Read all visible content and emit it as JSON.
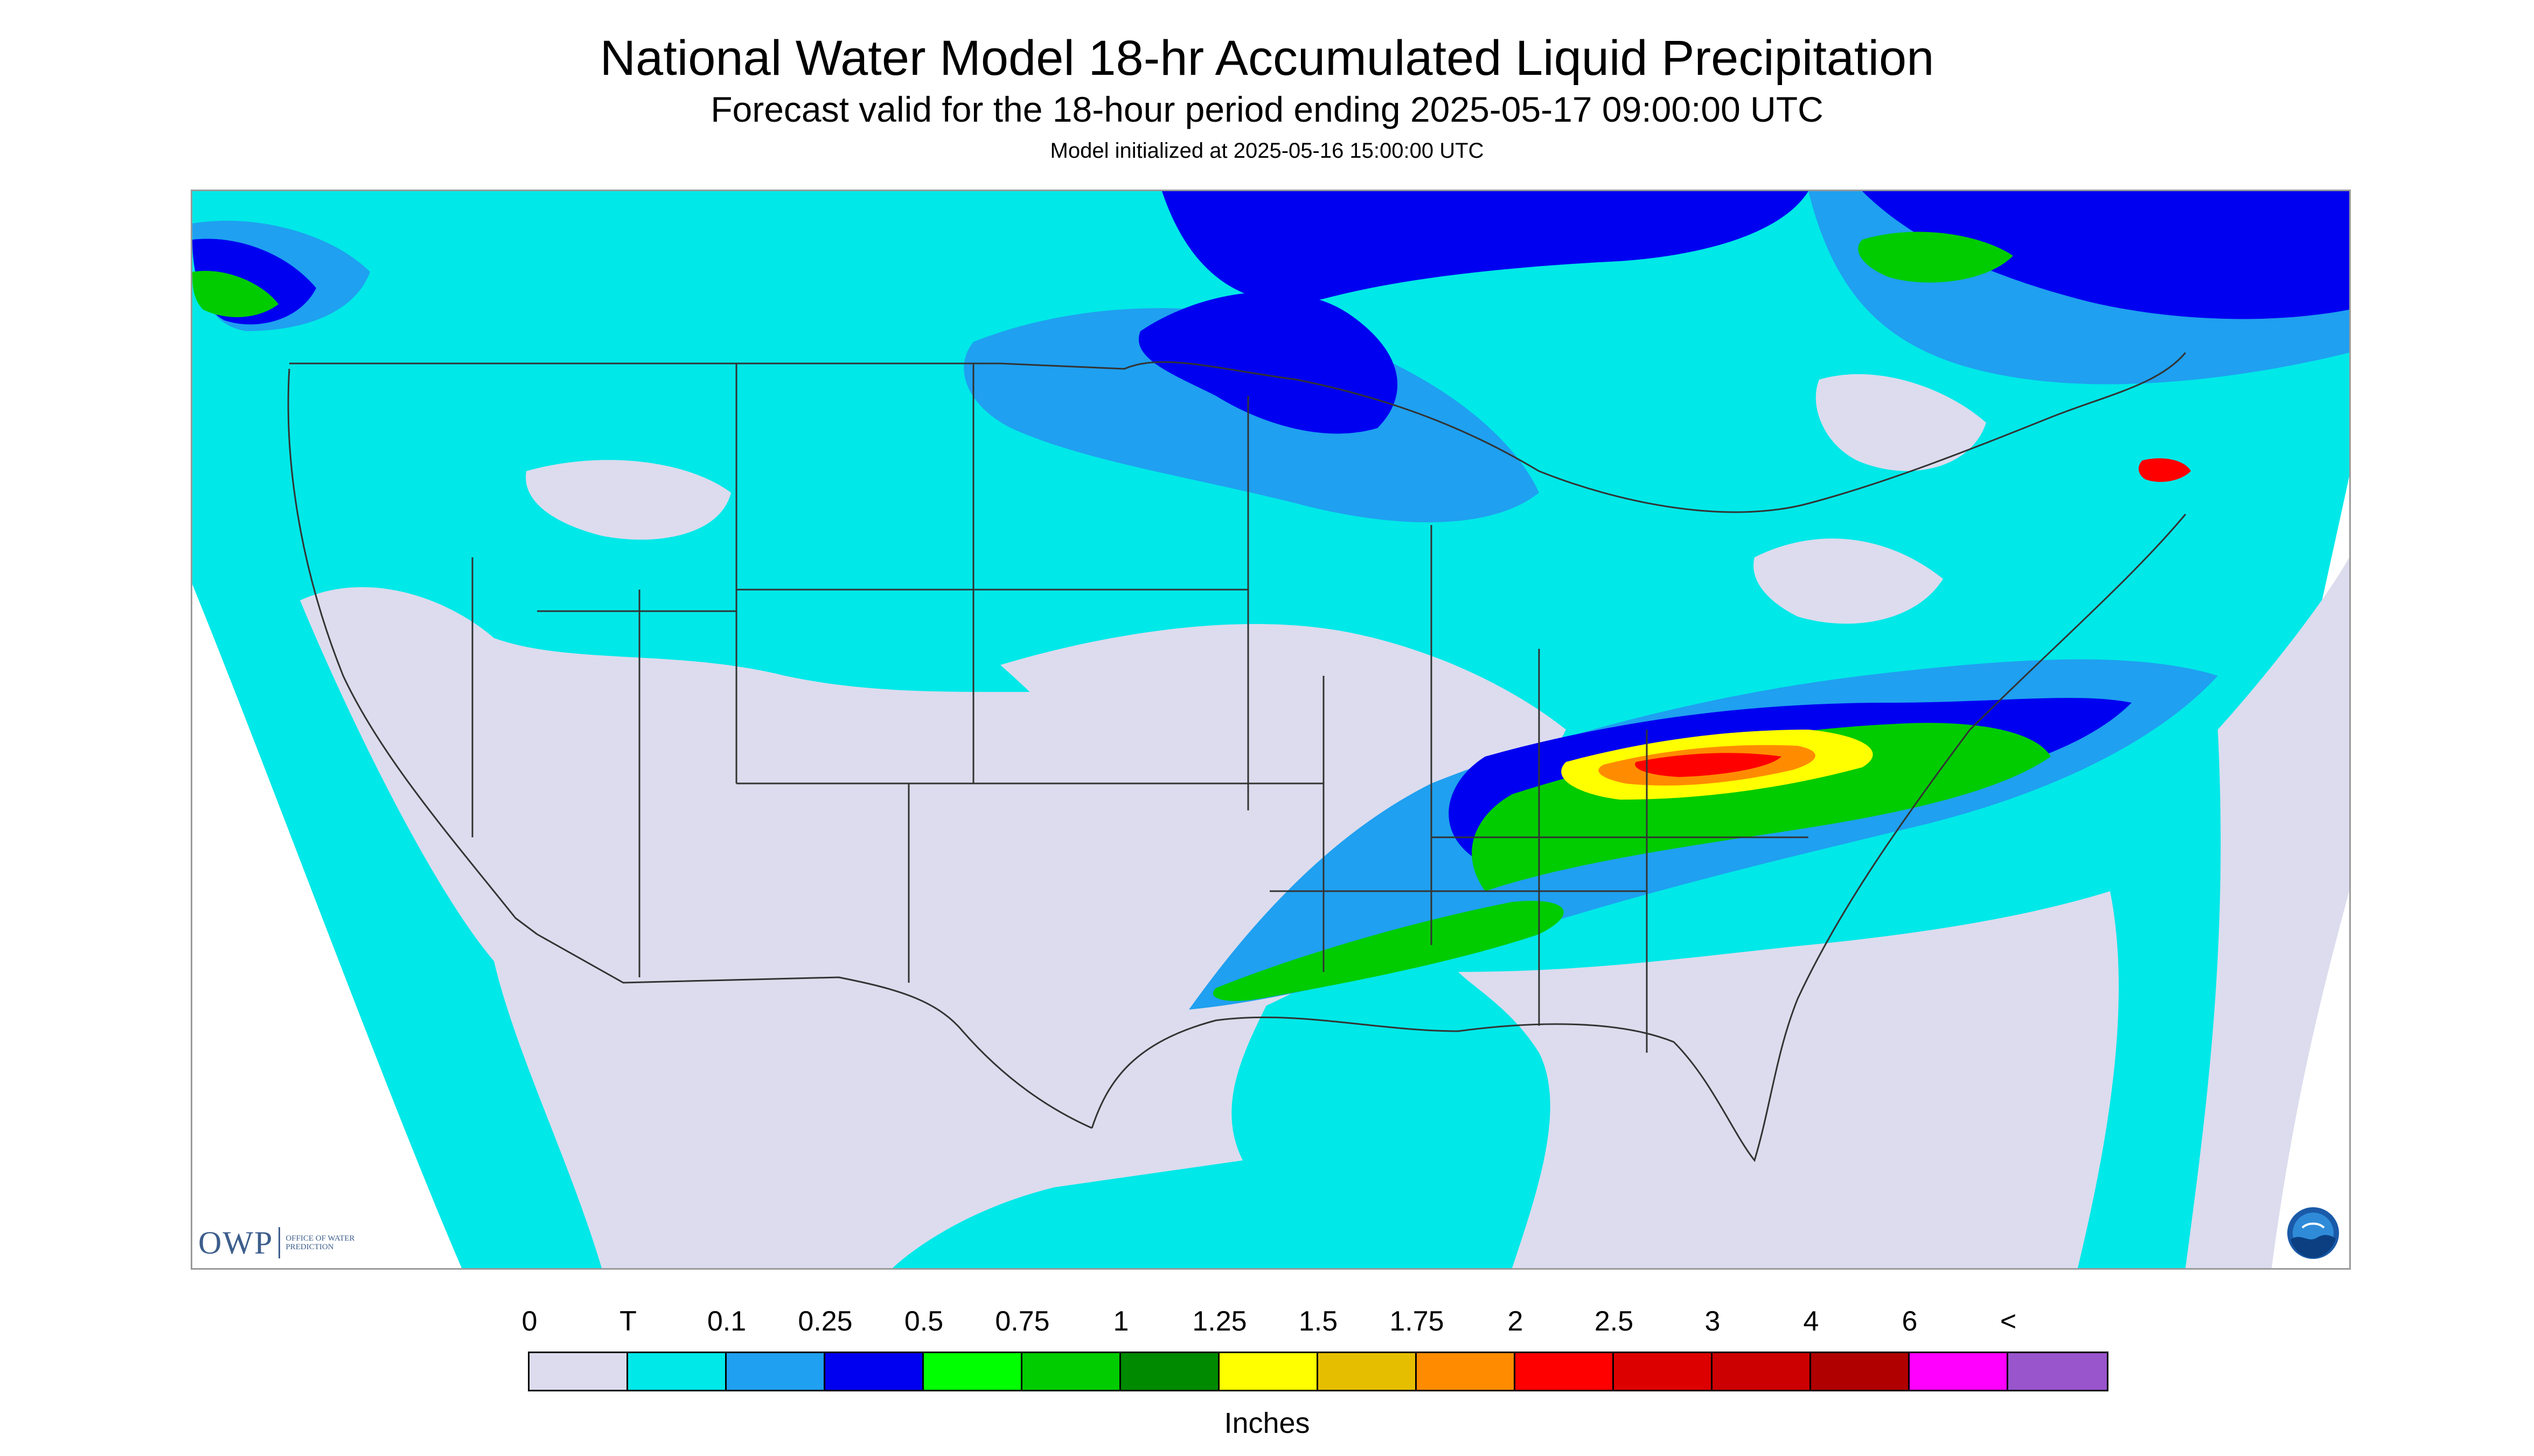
{
  "header": {
    "title": "National Water Model 18-hr Accumulated Liquid Precipitation",
    "subtitle": "Forecast valid for the 18-hour period ending 2025-05-17 09:00:00 UTC",
    "init": "Model initialized at 2025-05-16 15:00:00 UTC"
  },
  "logos": {
    "owp_main": "OWP",
    "owp_sub": "OFFICE OF WATER PREDICTION",
    "noaa": "NOAA"
  },
  "legend": {
    "labels": [
      "0",
      "T",
      "0.1",
      "0.25",
      "0.5",
      "0.75",
      "1",
      "1.25",
      "1.5",
      "1.75",
      "2",
      "2.5",
      "3",
      "4",
      "6",
      "<"
    ],
    "colors": [
      "#dcdcee",
      "#00e8e8",
      "#1fa0f0",
      "#0000f0",
      "#00ff00",
      "#00cc00",
      "#008a00",
      "#ffff00",
      "#e6be00",
      "#ff8c00",
      "#ff0000",
      "#dd0000",
      "#cc0000",
      "#b00000",
      "#ff00ff",
      "#9955cc"
    ],
    "units": "Inches"
  },
  "map": {
    "no_data_color": "#dcdcee",
    "trace_color": "#00e8e8",
    "light_color": "#1fa0f0",
    "moderate_color": "#0000f0",
    "heavy_color": "#00cc00",
    "extreme_colors": [
      "#ffff00",
      "#ff8c00",
      "#ff0000"
    ],
    "boundary_color": "#333333"
  }
}
